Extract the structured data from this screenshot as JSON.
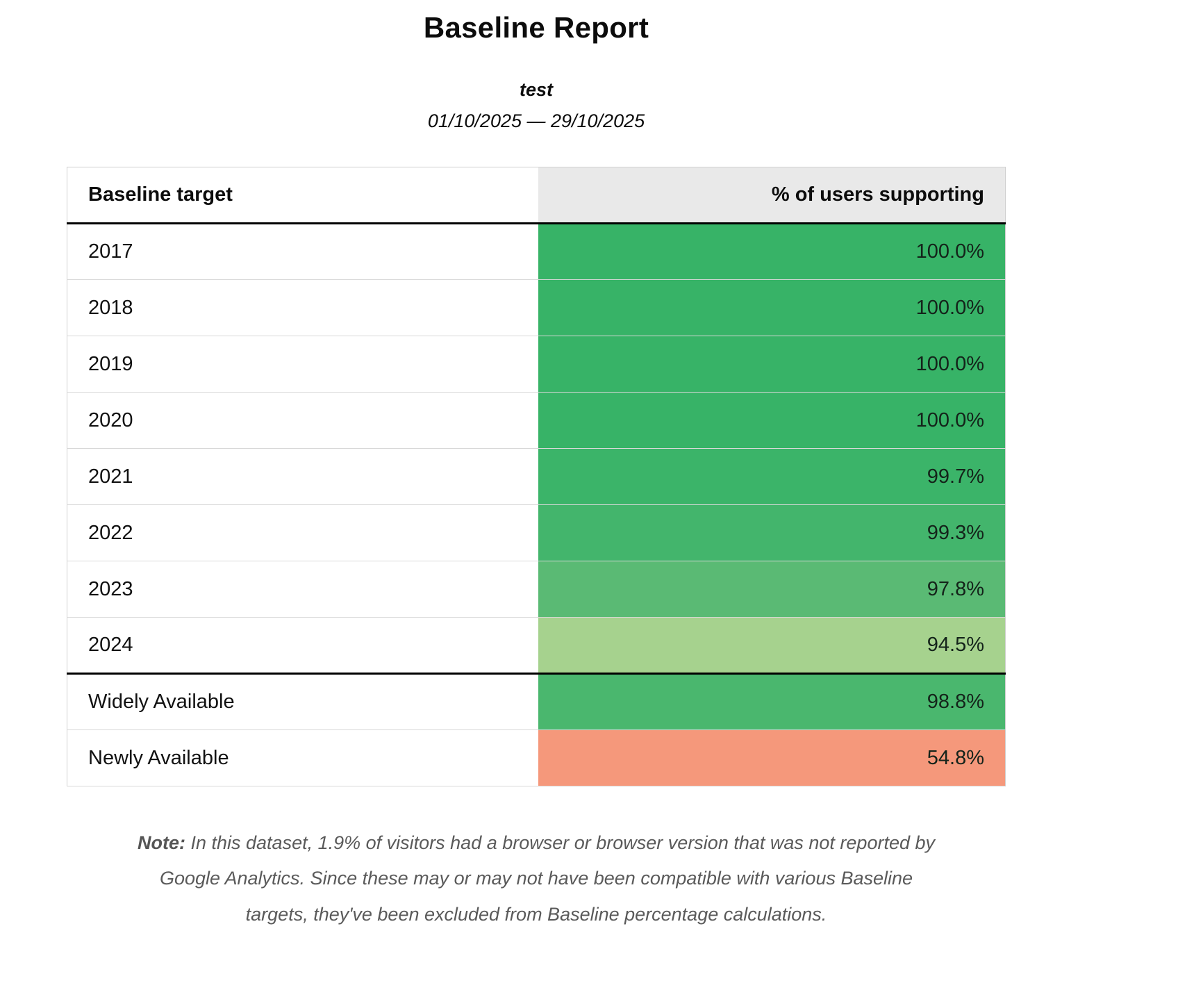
{
  "header": {
    "title": "Baseline Report",
    "subtitle": "test",
    "date_range": "01/10/2025 — 29/10/2025"
  },
  "table": {
    "columns": [
      "Baseline target",
      "% of users supporting"
    ],
    "rows": [
      {
        "label": "2017",
        "value": "100.0%",
        "color": "#37b367"
      },
      {
        "label": "2018",
        "value": "100.0%",
        "color": "#37b367"
      },
      {
        "label": "2019",
        "value": "100.0%",
        "color": "#37b367"
      },
      {
        "label": "2020",
        "value": "100.0%",
        "color": "#37b367"
      },
      {
        "label": "2021",
        "value": "99.7%",
        "color": "#3bb469"
      },
      {
        "label": "2022",
        "value": "99.3%",
        "color": "#43b56c"
      },
      {
        "label": "2023",
        "value": "97.8%",
        "color": "#5aba74"
      },
      {
        "label": "2024",
        "value": "94.5%",
        "color": "#a6d28e"
      },
      {
        "label": "Widely Available",
        "value": "98.8%",
        "color": "#4ab76e"
      },
      {
        "label": "Newly Available",
        "value": "54.8%",
        "color": "#f5987b"
      }
    ]
  },
  "note": {
    "label": "Note:",
    "text": "In this dataset, 1.9% of visitors had a browser or browser version that was not reported by Google Analytics. Since these may or may not have been compatible with various Baseline targets, they've been excluded from Baseline percentage calculations."
  },
  "chart_data": {
    "type": "table",
    "title": "Baseline Report",
    "subtitle": "test",
    "date_range": "01/10/2025 — 29/10/2025",
    "columns": [
      "Baseline target",
      "% of users supporting"
    ],
    "rows": [
      {
        "target": "2017",
        "percent_supporting": 100.0
      },
      {
        "target": "2018",
        "percent_supporting": 100.0
      },
      {
        "target": "2019",
        "percent_supporting": 100.0
      },
      {
        "target": "2020",
        "percent_supporting": 100.0
      },
      {
        "target": "2021",
        "percent_supporting": 99.7
      },
      {
        "target": "2022",
        "percent_supporting": 99.3
      },
      {
        "target": "2023",
        "percent_supporting": 97.8
      },
      {
        "target": "2024",
        "percent_supporting": 94.5
      },
      {
        "target": "Widely Available",
        "percent_supporting": 98.8
      },
      {
        "target": "Newly Available",
        "percent_supporting": 54.8
      }
    ],
    "excluded_visitors_percent": 1.9,
    "color_encoding": "cell background shades from green (high support) to salmon (low support)"
  }
}
